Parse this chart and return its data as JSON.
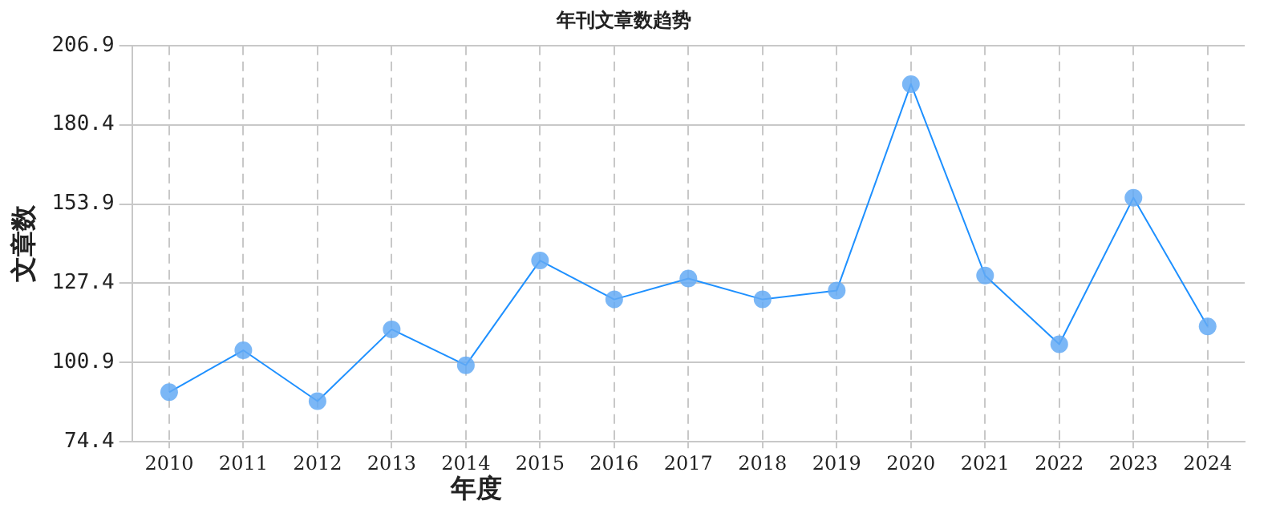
{
  "chart_data": {
    "type": "line",
    "title": "年刊文章数趋势",
    "xlabel": "年度",
    "ylabel": "文章数",
    "categories": [
      "2010",
      "2011",
      "2012",
      "2013",
      "2014",
      "2015",
      "2016",
      "2017",
      "2018",
      "2019",
      "2020",
      "2021",
      "2022",
      "2023",
      "2024"
    ],
    "series": [
      {
        "color": "#1e90ff",
        "values": [
          91,
          105,
          88,
          112,
          100,
          135,
          122,
          129,
          122,
          125,
          194,
          130,
          107,
          156,
          113
        ]
      }
    ],
    "ylim": [
      74.4,
      206.9
    ],
    "yticks": [
      74.4,
      100.9,
      127.4,
      153.9,
      180.4,
      206.9
    ],
    "grid": true,
    "legend": false,
    "marker": "circle",
    "line_style": "solid"
  }
}
